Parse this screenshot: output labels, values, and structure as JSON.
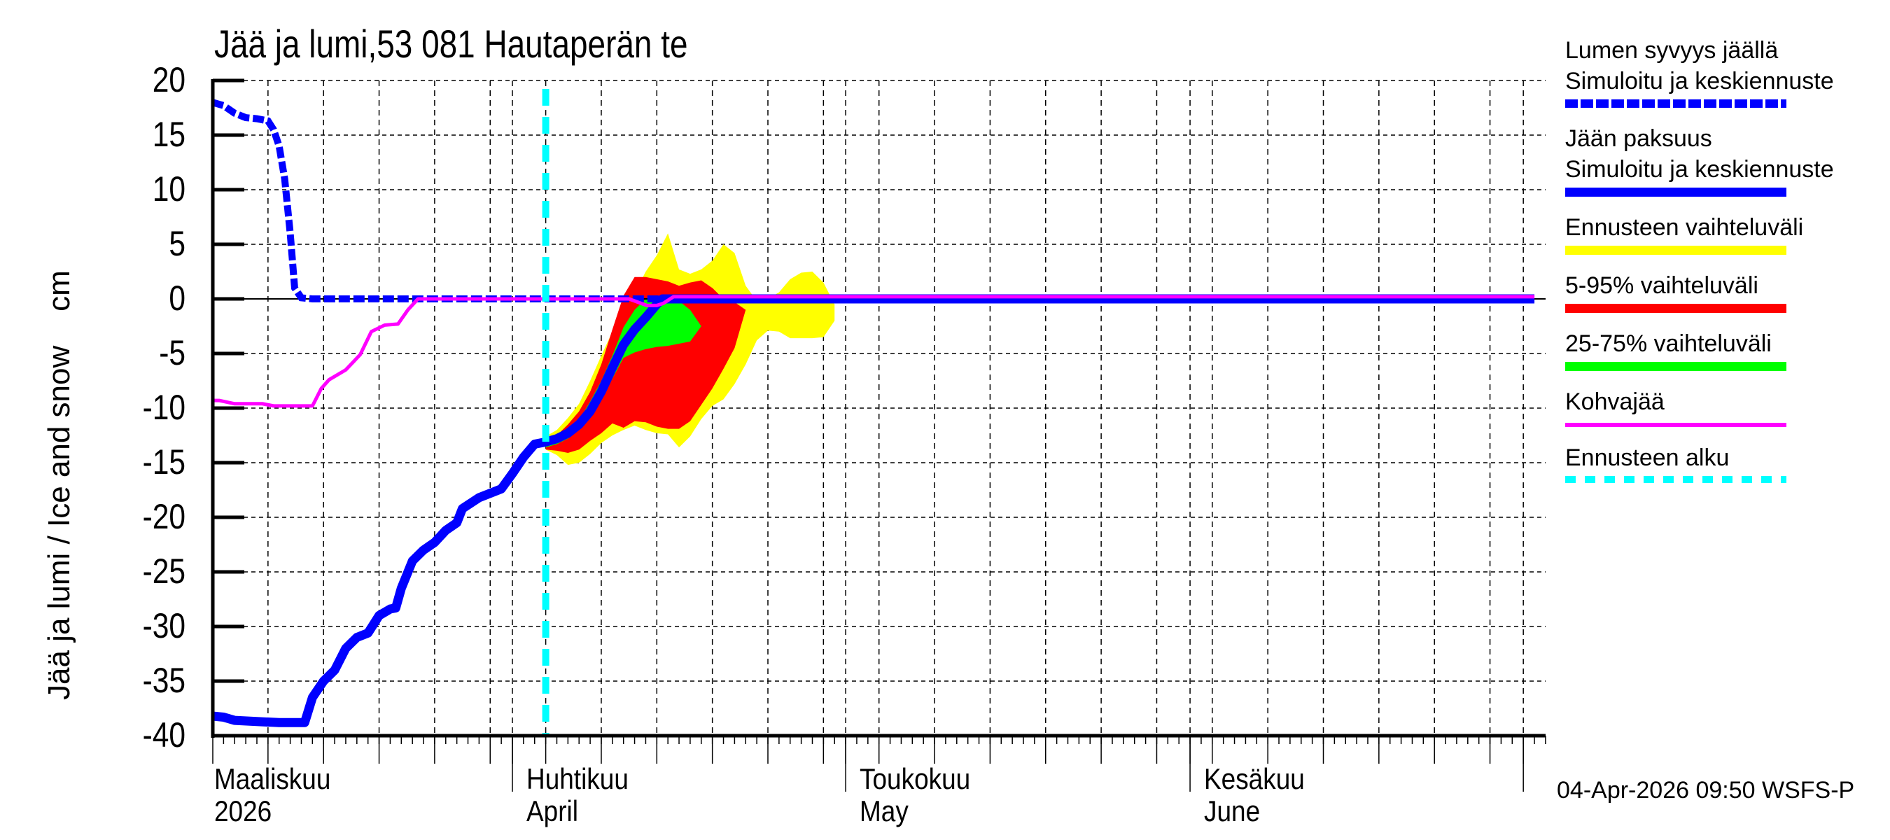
{
  "title": "Jää ja lumi,53 081 Hautaperän te",
  "y_axis_label": "Jää ja lumi / Ice and snow    cm",
  "timestamp": "04-Apr-2026 09:50 WSFS-P",
  "x_months": [
    {
      "fi": "Maaliskuu",
      "en": "2026"
    },
    {
      "fi": "Huhtikuu",
      "en": "April"
    },
    {
      "fi": "Toukokuu",
      "en": "May"
    },
    {
      "fi": "Kesäkuu",
      "en": "June"
    }
  ],
  "legend": [
    {
      "label": "Lumen syvyys jäällä",
      "sublabel": "Simuloitu ja keskiennuste",
      "color": "#0000ff",
      "style": "dashed-thick"
    },
    {
      "label": "Jään paksuus",
      "sublabel": "Simuloitu ja keskiennuste",
      "color": "#0000ff",
      "style": "solid-thick"
    },
    {
      "label": "Ennusteen vaihteluväli",
      "color": "#ffff00",
      "style": "band"
    },
    {
      "label": "5-95% vaihteluväli",
      "color": "#ff0000",
      "style": "band"
    },
    {
      "label": "25-75% vaihteluväli",
      "color": "#00ff00",
      "style": "band"
    },
    {
      "label": "Kohvajää",
      "color": "#ff00ff",
      "style": "solid-thin"
    },
    {
      "label": "Ennusteen alku",
      "color": "#00ffff",
      "style": "dashed"
    }
  ],
  "chart_data": {
    "type": "line",
    "title": "Jää ja lumi,53 081 Hautaperän te",
    "xlabel": "",
    "ylabel": "Jää ja lumi / Ice and snow cm",
    "x_unit": "days relative to 1 April 2026",
    "xlim": [
      -27,
      92
    ],
    "ylim": [
      -40,
      20
    ],
    "yticks": [
      20,
      15,
      10,
      5,
      0,
      -5,
      -10,
      -15,
      -20,
      -25,
      -30,
      -35,
      -40
    ],
    "month_ticks": {
      "Maaliskuu 2026": -27,
      "Huhtikuu April": 0,
      "Toukokuu May": 30,
      "Kesäkuu June": 61,
      "Heinäkuu": 91
    },
    "grid": true,
    "forecast_start_day": 3,
    "series": [
      {
        "name": "Lumen syvyys jäällä (Simuloitu ja keskiennuste)",
        "color": "#0000ff",
        "style": "dashed",
        "x": [
          -27,
          -26,
          -25,
          -24,
          -23,
          -22,
          -21.5,
          -21,
          -20.5,
          -20,
          -19.6,
          -19,
          -18,
          -15,
          -10,
          0,
          10,
          15,
          20,
          92
        ],
        "y": [
          18,
          17.7,
          17,
          16.6,
          16.5,
          16.3,
          15.5,
          14,
          11,
          6,
          1,
          0.1,
          0,
          0,
          0,
          0,
          0,
          0,
          0,
          0
        ]
      },
      {
        "name": "Jään paksuus (Simuloitu ja keskiennuste)",
        "color": "#0000ff",
        "style": "solid",
        "x": [
          -27,
          -26,
          -25,
          -23,
          -21,
          -18.7,
          -18,
          -17,
          -16,
          -15,
          -14,
          -13,
          -12,
          -11,
          -10.5,
          -10,
          -9,
          -8,
          -7,
          -6,
          -5,
          -4.5,
          -3,
          -2,
          -1,
          0,
          1,
          2,
          3,
          4,
          5,
          6,
          7,
          8,
          9,
          10,
          11,
          12,
          13,
          13.5,
          14,
          15,
          92
        ],
        "y": [
          -38.2,
          -38.3,
          -38.6,
          -38.7,
          -38.8,
          -38.8,
          -36.5,
          -35,
          -34,
          -32,
          -31,
          -30.6,
          -29,
          -28.4,
          -28.3,
          -26.5,
          -24,
          -23,
          -22.3,
          -21.2,
          -20.5,
          -19.2,
          -18.2,
          -17.8,
          -17.4,
          -16,
          -14.5,
          -13.3,
          -13.1,
          -12.8,
          -12.3,
          -11.5,
          -10.3,
          -8.5,
          -6.3,
          -4.2,
          -2.8,
          -1.7,
          -0.5,
          0,
          0,
          0,
          0
        ]
      },
      {
        "name": "Kohvajää",
        "color": "#ff00ff",
        "style": "solid",
        "x": [
          -27,
          -26.4,
          -25,
          -22.5,
          -21.5,
          -20,
          -18,
          -17.2,
          -16.5,
          -15,
          -13.7,
          -12.7,
          -11.5,
          -10.3,
          -9.4,
          -8.5,
          -7.7,
          0,
          6,
          10.5,
          12.1,
          13,
          13.6,
          14.5,
          92
        ],
        "y": [
          -9.3,
          -9.3,
          -9.6,
          -9.6,
          -9.8,
          -9.8,
          -9.8,
          -8.2,
          -7.4,
          -6.5,
          -5.1,
          -3.0,
          -2.4,
          -2.3,
          -1.0,
          0,
          0,
          0,
          0,
          0,
          -0.6,
          -0.6,
          -0.4,
          0.2,
          0.2
        ]
      }
    ],
    "bands": [
      {
        "name": "Ennusteen vaihteluväli",
        "color": "#ffff00",
        "x": [
          3,
          4,
          5,
          6,
          7,
          8,
          9,
          10,
          11,
          12,
          13,
          14,
          15,
          16,
          17,
          18,
          19,
          20,
          21,
          22,
          23,
          24,
          25,
          26,
          27,
          28,
          29
        ],
        "upper": [
          -12.6,
          -12,
          -10.9,
          -9.6,
          -7.5,
          -5.2,
          -3,
          -1.1,
          0.5,
          2.5,
          4,
          6,
          2.7,
          2.3,
          2.7,
          3.5,
          5,
          4.2,
          1.2,
          -0.2,
          0,
          0.6,
          1.8,
          2.4,
          2.5,
          1.5,
          -0.5
        ],
        "lower": [
          -13.8,
          -14.3,
          -15.2,
          -15,
          -14.2,
          -13.2,
          -12.5,
          -12,
          -11.6,
          -12,
          -12.3,
          -12.4,
          -13.6,
          -12.6,
          -11,
          -9.8,
          -9.2,
          -7.8,
          -6,
          -3.8,
          -2.9,
          -3,
          -3.6,
          -3.6,
          -3.6,
          -3.5,
          -2
        ]
      },
      {
        "name": "5-95% vaihteluväli",
        "color": "#ff0000",
        "x": [
          3,
          4,
          5,
          6,
          7,
          8,
          9,
          10,
          11,
          12,
          13,
          14,
          15,
          16,
          17,
          18,
          19,
          20,
          21
        ],
        "upper": [
          -12.9,
          -12.5,
          -11.5,
          -10.3,
          -8.5,
          -6,
          -2.8,
          0.3,
          2.0,
          2.0,
          1.8,
          1.6,
          1.2,
          1.5,
          1.7,
          1,
          0,
          -0.3,
          -1
        ],
        "lower": [
          -13.8,
          -13.9,
          -14.1,
          -13.8,
          -13,
          -12.3,
          -11.4,
          -11.8,
          -11.2,
          -11.3,
          -11.7,
          -11.9,
          -11.9,
          -11.2,
          -9.7,
          -8.2,
          -6.4,
          -4.5,
          -1
        ]
      },
      {
        "name": "25-75% vaihteluväli",
        "color": "#00ff00",
        "x": [
          3,
          4,
          5,
          6,
          7,
          8,
          9,
          10,
          11,
          12,
          13,
          14,
          15,
          16,
          17
        ],
        "upper": [
          -13.2,
          -12.9,
          -12.2,
          -11.1,
          -9.4,
          -7.5,
          -5.2,
          -2.6,
          -1,
          0,
          0,
          0,
          -0.2,
          -1,
          -2.5
        ],
        "lower": [
          -13.6,
          -13.3,
          -12.8,
          -12,
          -10.9,
          -9.3,
          -7.3,
          -5.4,
          -4.9,
          -4.6,
          -4.4,
          -4.3,
          -4.1,
          -3.9,
          -2.5
        ]
      }
    ]
  }
}
